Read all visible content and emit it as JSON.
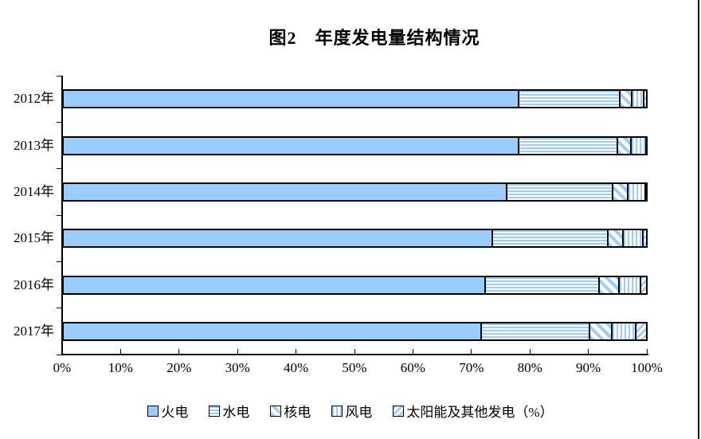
{
  "title": "图2　年度发电量结构情况",
  "chart_data": {
    "type": "bar",
    "orientation": "horizontal",
    "stacked": true,
    "title": "图2　年度发电量结构情况",
    "categories": [
      "2012年",
      "2013年",
      "2014年",
      "2015年",
      "2016年",
      "2017年"
    ],
    "series": [
      {
        "name": "火电",
        "pattern": "solid-fill",
        "values": [
          78.0,
          78.0,
          75.9,
          73.4,
          72.2,
          71.5
        ]
      },
      {
        "name": "水电",
        "pattern": "horizontal-stripes",
        "values": [
          17.3,
          17.0,
          18.2,
          19.9,
          19.6,
          18.6
        ]
      },
      {
        "name": "核电",
        "pattern": "diagonal-stripes",
        "values": [
          2.1,
          2.3,
          2.6,
          2.6,
          3.4,
          3.9
        ]
      },
      {
        "name": "风电",
        "pattern": "vertical-stripes",
        "values": [
          2.1,
          2.5,
          3.0,
          3.4,
          3.7,
          4.1
        ]
      },
      {
        "name": "太阳能及其他发电",
        "pattern": "diagonal-dashes",
        "values": [
          0.5,
          0.2,
          0.3,
          0.7,
          1.1,
          1.9
        ]
      }
    ],
    "x_axis": {
      "min": 0,
      "max": 100,
      "tick_labels": [
        "0%",
        "10%",
        "20%",
        "30%",
        "40%",
        "50%",
        "60%",
        "70%",
        "80%",
        "90%",
        "100%"
      ]
    },
    "legend": [
      "火电",
      "水电",
      "核电",
      "风电",
      "太阳能及其他发电（%）"
    ],
    "legend_position": "bottom",
    "grid": false,
    "colors": {
      "fill_blue": "#99CCFF",
      "border": "#000000",
      "background": "#FFFFFF"
    }
  }
}
